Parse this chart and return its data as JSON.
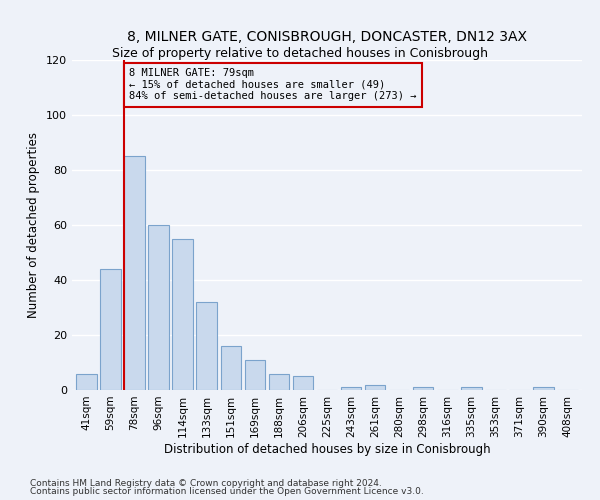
{
  "title_line1": "8, MILNER GATE, CONISBROUGH, DONCASTER, DN12 3AX",
  "title_line2": "Size of property relative to detached houses in Conisbrough",
  "xlabel": "Distribution of detached houses by size in Conisbrough",
  "ylabel": "Number of detached properties",
  "bar_labels": [
    "41sqm",
    "59sqm",
    "78sqm",
    "96sqm",
    "114sqm",
    "133sqm",
    "151sqm",
    "169sqm",
    "188sqm",
    "206sqm",
    "225sqm",
    "243sqm",
    "261sqm",
    "280sqm",
    "298sqm",
    "316sqm",
    "335sqm",
    "353sqm",
    "371sqm",
    "390sqm",
    "408sqm"
  ],
  "bar_values": [
    6,
    44,
    85,
    60,
    55,
    32,
    16,
    11,
    6,
    5,
    0,
    1,
    2,
    0,
    1,
    0,
    1,
    0,
    0,
    1,
    0
  ],
  "bar_color": "#c9d9ed",
  "bar_edge_color": "#7ba3cc",
  "ylim": [
    0,
    120
  ],
  "yticks": [
    0,
    20,
    40,
    60,
    80,
    100,
    120
  ],
  "property_line_bin": 2,
  "annotation_line1": "8 MILNER GATE: 79sqm",
  "annotation_line2": "← 15% of detached houses are smaller (49)",
  "annotation_line3": "84% of semi-detached houses are larger (273) →",
  "vline_color": "#cc0000",
  "bg_color": "#eef2f9",
  "grid_color": "#ffffff",
  "footer_line1": "Contains HM Land Registry data © Crown copyright and database right 2024.",
  "footer_line2": "Contains public sector information licensed under the Open Government Licence v3.0."
}
